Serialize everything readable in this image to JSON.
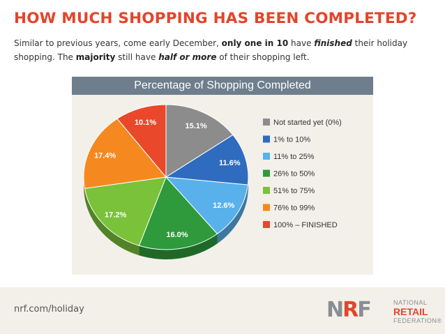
{
  "header": {
    "headline": "HOW MUCH SHOPPING HAS BEEN COMPLETED?",
    "subtitle_parts": [
      {
        "text": "Similar to previous years, come early December, ",
        "style": "normal"
      },
      {
        "text": "only one in 10",
        "style": "bold"
      },
      {
        "text": " have ",
        "style": "normal"
      },
      {
        "text": "finished",
        "style": "bold-italic"
      },
      {
        "text": " their holiday shopping. The ",
        "style": "normal"
      },
      {
        "text": "majority",
        "style": "bold"
      },
      {
        "text": " still have ",
        "style": "normal"
      },
      {
        "text": "half or more",
        "style": "bold-italic"
      },
      {
        "text": " of their shopping left.",
        "style": "normal"
      }
    ]
  },
  "chart_data": {
    "type": "pie",
    "title": "Percentage of Shopping Completed",
    "slices": [
      {
        "label": "Not started yet (0%)",
        "value": 15.1,
        "display": "15.1%",
        "color": "#8c8c8c"
      },
      {
        "label": "1% to 10%",
        "value": 11.6,
        "display": "11.6%",
        "color": "#2f6cc0"
      },
      {
        "label": "11% to 25%",
        "value": 12.6,
        "display": "12.6%",
        "color": "#58b1ea"
      },
      {
        "label": "26% to 50%",
        "value": 16.0,
        "display": "16.0%",
        "color": "#2e9a3b"
      },
      {
        "label": "51% to 75%",
        "value": 17.2,
        "display": "17.2%",
        "color": "#79c23a"
      },
      {
        "label": "76% to 99%",
        "value": 17.4,
        "display": "17.4%",
        "color": "#f5891f"
      },
      {
        "label": "100% – FINISHED",
        "value": 10.1,
        "display": "10.1%",
        "color": "#e9482b"
      }
    ],
    "legend_position": "right",
    "start": "top, clockwise"
  },
  "footer": {
    "url": "nrf.com/holiday",
    "logo_mark": [
      "N",
      "R",
      "F"
    ],
    "logo_words": [
      "NATIONAL",
      "RETAIL",
      "FEDERATION"
    ],
    "logo_trademark": "®"
  }
}
